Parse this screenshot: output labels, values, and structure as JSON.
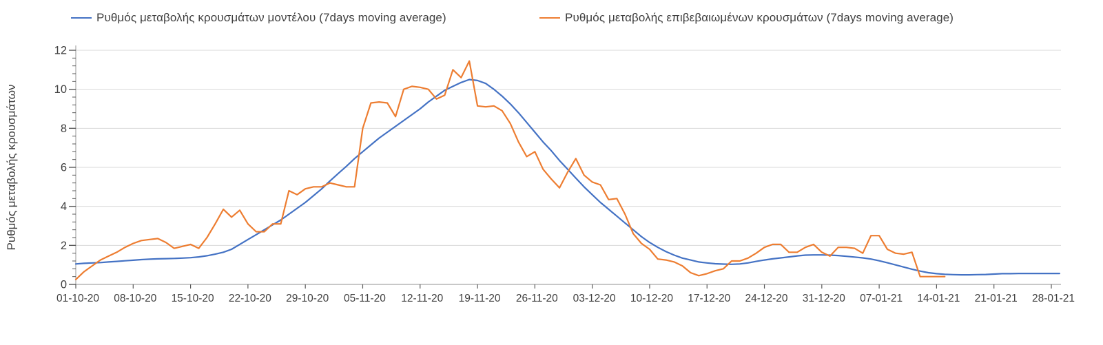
{
  "legend": [
    {
      "label": "Ρυθμός μεταβολής κρουσμάτων μοντέλου (7days moving average)",
      "color": "#4472C4"
    },
    {
      "label": "Ρυθμός μεταβολής επιβεβαιωμένων κρουσμάτων (7days moving average)",
      "color": "#ED7D31"
    }
  ],
  "chart_data": {
    "type": "line",
    "title": "",
    "xlabel": "",
    "ylabel": "Ρυθμός μεταβολής κρουσμάτων",
    "ylim": [
      0,
      12
    ],
    "y_major_tick_step": 2,
    "y_minor_tick_step": 0.4,
    "y_tick_labels": [
      "0",
      "2",
      "4",
      "6",
      "8",
      "10",
      "12"
    ],
    "grid": "horizontal-major",
    "legend_position": "top",
    "x_tick_interval_days": 7,
    "x_tick_labels": [
      "01-10-20",
      "08-10-20",
      "15-10-20",
      "22-10-20",
      "29-10-20",
      "05-11-20",
      "12-11-20",
      "19-11-20",
      "26-11-20",
      "03-12-20",
      "10-12-20",
      "17-12-20",
      "24-12-20",
      "31-12-20",
      "07-01-21",
      "14-01-21",
      "21-01-21",
      "28-01-21"
    ],
    "series": [
      {
        "name": "Ρυθμός μεταβολής κρουσμάτων μοντέλου (7days moving average)",
        "color": "#4472C4",
        "start_day": 0,
        "step_days": 1,
        "values": [
          1.05,
          1.08,
          1.1,
          1.12,
          1.15,
          1.18,
          1.21,
          1.24,
          1.27,
          1.29,
          1.31,
          1.32,
          1.33,
          1.35,
          1.37,
          1.41,
          1.47,
          1.55,
          1.65,
          1.8,
          2.05,
          2.3,
          2.55,
          2.8,
          3.05,
          3.3,
          3.6,
          3.9,
          4.2,
          4.55,
          4.9,
          5.3,
          5.68,
          6.05,
          6.45,
          6.8,
          7.15,
          7.5,
          7.8,
          8.1,
          8.4,
          8.7,
          9.0,
          9.35,
          9.65,
          9.95,
          10.15,
          10.35,
          10.5,
          10.45,
          10.3,
          10.0,
          9.65,
          9.25,
          8.8,
          8.3,
          7.8,
          7.3,
          6.85,
          6.35,
          5.9,
          5.45,
          5.0,
          4.6,
          4.2,
          3.85,
          3.5,
          3.15,
          2.8,
          2.45,
          2.15,
          1.9,
          1.68,
          1.5,
          1.35,
          1.25,
          1.15,
          1.1,
          1.06,
          1.04,
          1.03,
          1.05,
          1.1,
          1.18,
          1.25,
          1.31,
          1.36,
          1.41,
          1.46,
          1.5,
          1.51,
          1.51,
          1.5,
          1.48,
          1.44,
          1.4,
          1.36,
          1.3,
          1.21,
          1.11,
          1.0,
          0.89,
          0.78,
          0.68,
          0.6,
          0.55,
          0.52,
          0.5,
          0.49,
          0.49,
          0.5,
          0.51,
          0.53,
          0.55,
          0.55,
          0.56,
          0.56,
          0.56,
          0.56,
          0.56,
          0.56
        ]
      },
      {
        "name": "Ρυθμός μεταβολής επιβεβαιωμένων κρουσμάτων (7days moving average)",
        "color": "#ED7D31",
        "start_day": 0,
        "step_days": 1,
        "values": [
          0.25,
          0.65,
          0.95,
          1.25,
          1.45,
          1.65,
          1.9,
          2.1,
          2.25,
          2.3,
          2.35,
          2.15,
          1.85,
          1.95,
          2.05,
          1.85,
          2.4,
          3.1,
          3.85,
          3.45,
          3.8,
          3.1,
          2.7,
          2.7,
          3.1,
          3.1,
          4.8,
          4.6,
          4.9,
          5.0,
          5.0,
          5.2,
          5.1,
          5.0,
          5.0,
          8.0,
          9.3,
          9.35,
          9.3,
          8.6,
          10.0,
          10.15,
          10.1,
          10.0,
          9.5,
          9.7,
          11.0,
          10.6,
          11.45,
          9.15,
          9.1,
          9.15,
          8.9,
          8.25,
          7.3,
          6.55,
          6.8,
          5.9,
          5.4,
          4.95,
          5.75,
          6.45,
          5.6,
          5.25,
          5.1,
          4.35,
          4.4,
          3.6,
          2.6,
          2.1,
          1.8,
          1.3,
          1.25,
          1.15,
          0.95,
          0.6,
          0.45,
          0.55,
          0.7,
          0.8,
          1.2,
          1.2,
          1.35,
          1.6,
          1.9,
          2.05,
          2.05,
          1.65,
          1.65,
          1.9,
          2.05,
          1.65,
          1.45,
          1.9,
          1.9,
          1.85,
          1.6,
          2.5,
          2.5,
          1.8,
          1.6,
          1.55,
          1.65,
          0.4,
          0.4,
          0.4,
          0.4
        ]
      }
    ]
  }
}
